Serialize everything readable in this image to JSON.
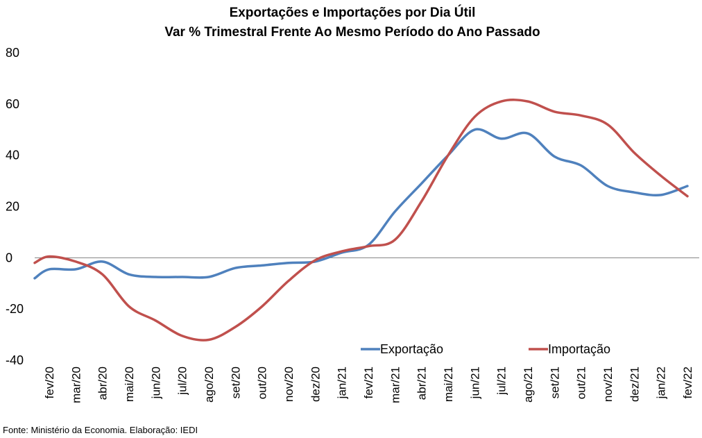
{
  "chart_data": {
    "type": "line",
    "title": "Exportações e Importações por Dia Útil",
    "subtitle": "Var % Trimestral Frente Ao Mesmo Período do Ano Passado",
    "xlabel": "",
    "ylabel": "",
    "ylim": [
      -40,
      80
    ],
    "yticks": [
      "80",
      "60",
      "40",
      "20",
      "0",
      "-20",
      "-40"
    ],
    "categories": [
      "fev/20",
      "mar/20",
      "abr/20",
      "mai/20",
      "jun/20",
      "jul/20",
      "ago/20",
      "set/20",
      "out/20",
      "nov/20",
      "dez/20",
      "jan/21",
      "fev/21",
      "mar/21",
      "abr/21",
      "mai/21",
      "jun/21",
      "jul/21",
      "ago/21",
      "set/21",
      "out/21",
      "nov/21",
      "dez/21",
      "jan/22",
      "fev/22"
    ],
    "series": [
      {
        "name": "Exportação",
        "color": "#4F81BD",
        "values": [
          -4.5,
          -4.5,
          -1.5,
          -6.5,
          -7.5,
          -7.5,
          -7.5,
          -4,
          -3,
          -2,
          -1.5,
          2,
          5,
          18,
          29,
          40,
          50,
          46.5,
          48.5,
          39.5,
          36,
          28,
          25.5,
          24.5,
          28
        ]
      },
      {
        "name": "Importação",
        "color": "#C0504D",
        "values": [
          0.5,
          -1.5,
          -6.5,
          -19,
          -24.5,
          -30.5,
          -32,
          -27,
          -19,
          -9,
          -1,
          2.5,
          4.5,
          7,
          22,
          40,
          55,
          61,
          61,
          57,
          55.5,
          52,
          41,
          32,
          24
        ]
      }
    ],
    "grid": false,
    "legend_position": "bottom-right"
  },
  "source_note": "Fonte: Ministério da Economia. Elaboração: IEDI"
}
